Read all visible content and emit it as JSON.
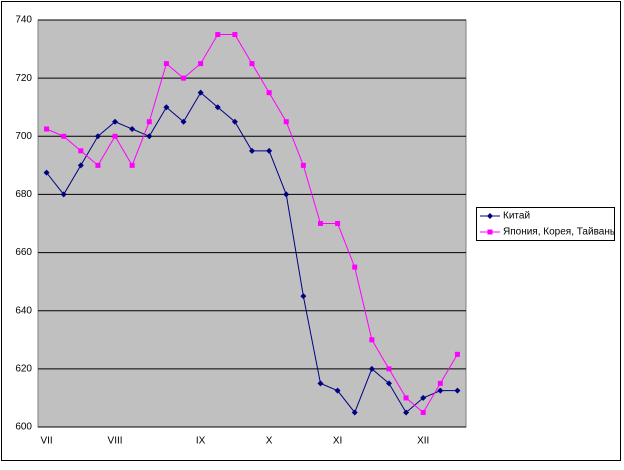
{
  "chart_data": {
    "type": "line",
    "categories": [
      "VII",
      null,
      null,
      null,
      "VIII",
      null,
      null,
      null,
      null,
      "IX",
      null,
      null,
      null,
      "X",
      null,
      null,
      null,
      "XI",
      null,
      null,
      null,
      null,
      "XII",
      null,
      null
    ],
    "series": [
      {
        "name": "Китай",
        "color": "#000080",
        "marker": "diamond",
        "values": [
          687.5,
          680,
          690,
          700,
          705,
          702.5,
          700,
          710,
          705,
          715,
          710,
          705,
          695,
          695,
          680,
          645,
          615,
          612.5,
          605,
          620,
          615,
          605,
          610,
          612.5,
          612.5
        ]
      },
      {
        "name": "Япония, Корея, Тайвань",
        "color": "#ff00ff",
        "marker": "square",
        "values": [
          702.5,
          700,
          695,
          690,
          700,
          690,
          705,
          725,
          720,
          725,
          735,
          735,
          725,
          715,
          705,
          690,
          670,
          670,
          655,
          630,
          620,
          610,
          605,
          615,
          625
        ]
      }
    ],
    "ylim": [
      600,
      740
    ],
    "yticks": [
      600,
      620,
      640,
      660,
      680,
      700,
      720,
      740
    ],
    "grid": true,
    "legend": "right"
  }
}
